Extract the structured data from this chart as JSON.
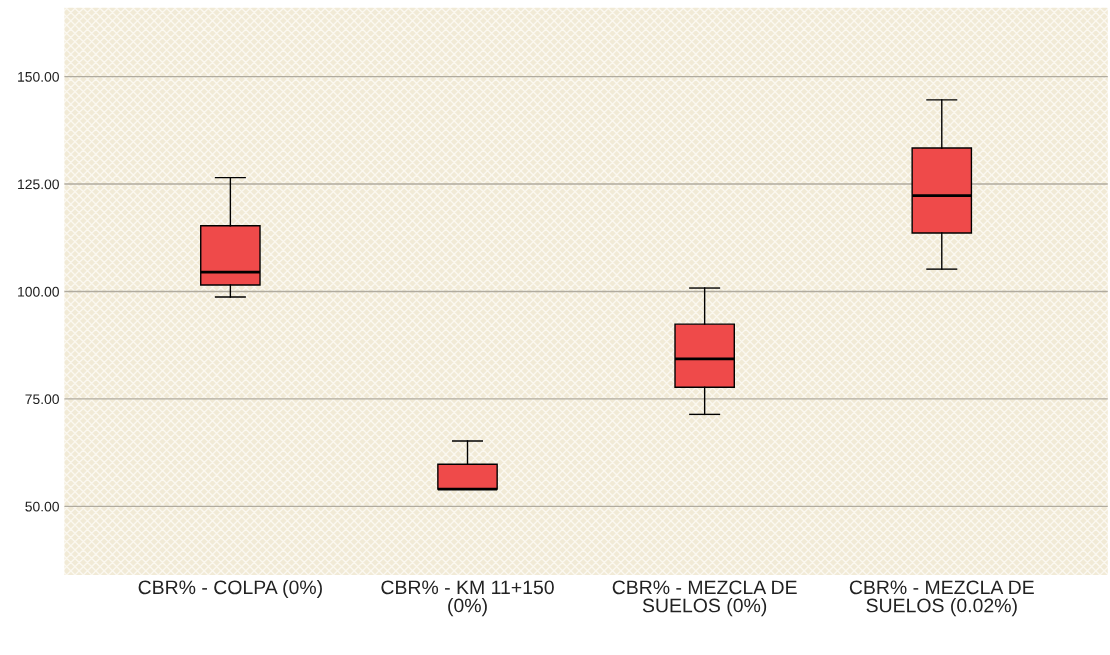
{
  "chart_data": {
    "type": "box",
    "categories": [
      "CBR% - COLPA (0%)",
      "CBR% - KM 11+150\n(0%)",
      "CBR% - MEZCLA DE\nSUELOS (0%)",
      "CBR% - MEZCLA DE\nSUELOS (0.02%)"
    ],
    "boxes": [
      {
        "low": 98.7,
        "q1": 101.5,
        "median": 104.5,
        "q3": 115.3,
        "high": 126.5
      },
      {
        "low": 54.0,
        "q1": 54.0,
        "median": 54.0,
        "q3": 59.8,
        "high": 65.2
      },
      {
        "low": 71.4,
        "q1": 77.7,
        "median": 84.3,
        "q3": 92.4,
        "high": 100.8
      },
      {
        "low": 105.2,
        "q1": 113.6,
        "median": 122.3,
        "q3": 133.4,
        "high": 144.6
      }
    ],
    "color": "#ef4a4a",
    "ylim": [
      34,
      166
    ],
    "yticks": [
      {
        "value": 50,
        "label": "50.00"
      },
      {
        "value": 75,
        "label": "75.00"
      },
      {
        "value": 100,
        "label": "100.00"
      },
      {
        "value": 125,
        "label": "125.00"
      },
      {
        "value": 150,
        "label": "150.00"
      }
    ],
    "grid": "y"
  }
}
